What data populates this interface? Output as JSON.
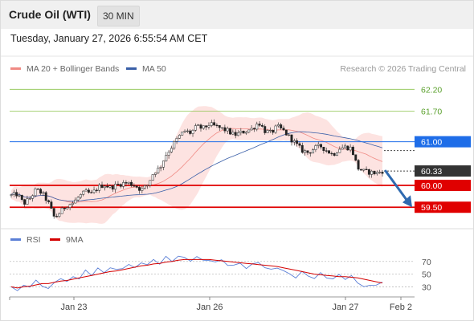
{
  "header": {
    "title": "Crude Oil (WTI)",
    "timeframe": "30 MIN"
  },
  "datetime": "Tuesday, January 27, 2026 6:55:54 AM CET",
  "legend": {
    "ma20_label": "MA 20 + Bollinger Bands",
    "ma50_label": "MA 50",
    "credit": "Research © 2026 Trading Central"
  },
  "rsi_legend": {
    "rsi_label": "RSI",
    "ma_label": "9MA"
  },
  "colors": {
    "ma20": "#f08a84",
    "ma50": "#3a5fa8",
    "bollinger_fill": "#fde3e1",
    "support": "#e00000",
    "pivot": "#1e6de8",
    "resistance": "#8bc34a",
    "last_price_bg": "#333333",
    "arrow": "#2f6ab0",
    "rsi_line": "#5b7fd6",
    "rsi_ma": "#d40000"
  },
  "chart_data": [
    {
      "type": "candlestick",
      "title": "Crude Oil (WTI)",
      "timeframe": "30 MIN",
      "ylim": [
        59.1,
        62.5
      ],
      "x_tick_labels": [
        "Jan 23",
        "Jan 26",
        "Jan 27",
        "Feb 2"
      ],
      "levels": [
        {
          "value": 62.2,
          "label": "62.20",
          "kind": "resistance"
        },
        {
          "value": 61.7,
          "label": "61.70",
          "kind": "resistance"
        },
        {
          "value": 61.0,
          "label": "61.00",
          "kind": "pivot"
        },
        {
          "value": 60.0,
          "label": "60.00",
          "kind": "support"
        },
        {
          "value": 59.5,
          "label": "59.50",
          "kind": "support"
        }
      ],
      "last_price": {
        "value": 60.33,
        "label": "60.33"
      },
      "forecast_arrow": {
        "from": 60.33,
        "to": 59.5,
        "direction": "down"
      },
      "series": [
        {
          "name": "MA 20 + Bollinger Bands",
          "kind": "ma20_bollinger"
        },
        {
          "name": "MA 50",
          "kind": "ma50"
        }
      ],
      "close_path": [
        59.77,
        59.8,
        59.58,
        59.7,
        59.9,
        59.82,
        59.6,
        59.25,
        59.4,
        59.55,
        59.6,
        59.75,
        59.85,
        59.8,
        59.95,
        60.02,
        59.95,
        60.0,
        60.05,
        60.05,
        60.0,
        59.9,
        60.0,
        60.3,
        60.4,
        60.7,
        60.9,
        61.1,
        61.25,
        61.2,
        61.35,
        61.3,
        61.4,
        61.35,
        61.3,
        61.25,
        61.15,
        61.2,
        61.25,
        61.3,
        61.45,
        61.25,
        61.2,
        61.35,
        61.25,
        61.1,
        60.95,
        60.8,
        60.75,
        60.85,
        60.9,
        60.8,
        60.7,
        60.85,
        60.88,
        60.85,
        60.4,
        60.32,
        60.3,
        60.28,
        60.33
      ]
    },
    {
      "type": "line",
      "title": "RSI",
      "ylim": [
        14,
        90
      ],
      "y_tick_labels": [
        "70",
        "50",
        "30"
      ],
      "y_ticks": [
        70,
        50,
        30
      ],
      "series": [
        {
          "name": "RSI",
          "values": [
            30,
            22,
            35,
            28,
            40,
            33,
            25,
            38,
            44,
            36,
            48,
            42,
            55,
            50,
            58,
            52,
            62,
            55,
            60,
            66,
            58,
            70,
            64,
            72,
            68,
            76,
            70,
            80,
            74,
            72,
            78,
            70,
            74,
            68,
            72,
            66,
            62,
            68,
            60,
            64,
            70,
            60,
            56,
            62,
            54,
            50,
            46,
            52,
            48,
            44,
            50,
            46,
            42,
            48,
            44,
            46,
            36,
            32,
            30,
            34,
            38
          ]
        },
        {
          "name": "9MA",
          "values": [
            30,
            28,
            30,
            31,
            33,
            35,
            35,
            37,
            39,
            40,
            42,
            44,
            46,
            48,
            50,
            52,
            54,
            55,
            57,
            59,
            61,
            63,
            64,
            66,
            67,
            69,
            70,
            72,
            73,
            73,
            73,
            73,
            73,
            72,
            71,
            70,
            69,
            68,
            67,
            66,
            65,
            64,
            63,
            62,
            60,
            58,
            56,
            54,
            52,
            50,
            49,
            48,
            47,
            46,
            46,
            45,
            44,
            42,
            40,
            38,
            36
          ]
        }
      ]
    }
  ]
}
